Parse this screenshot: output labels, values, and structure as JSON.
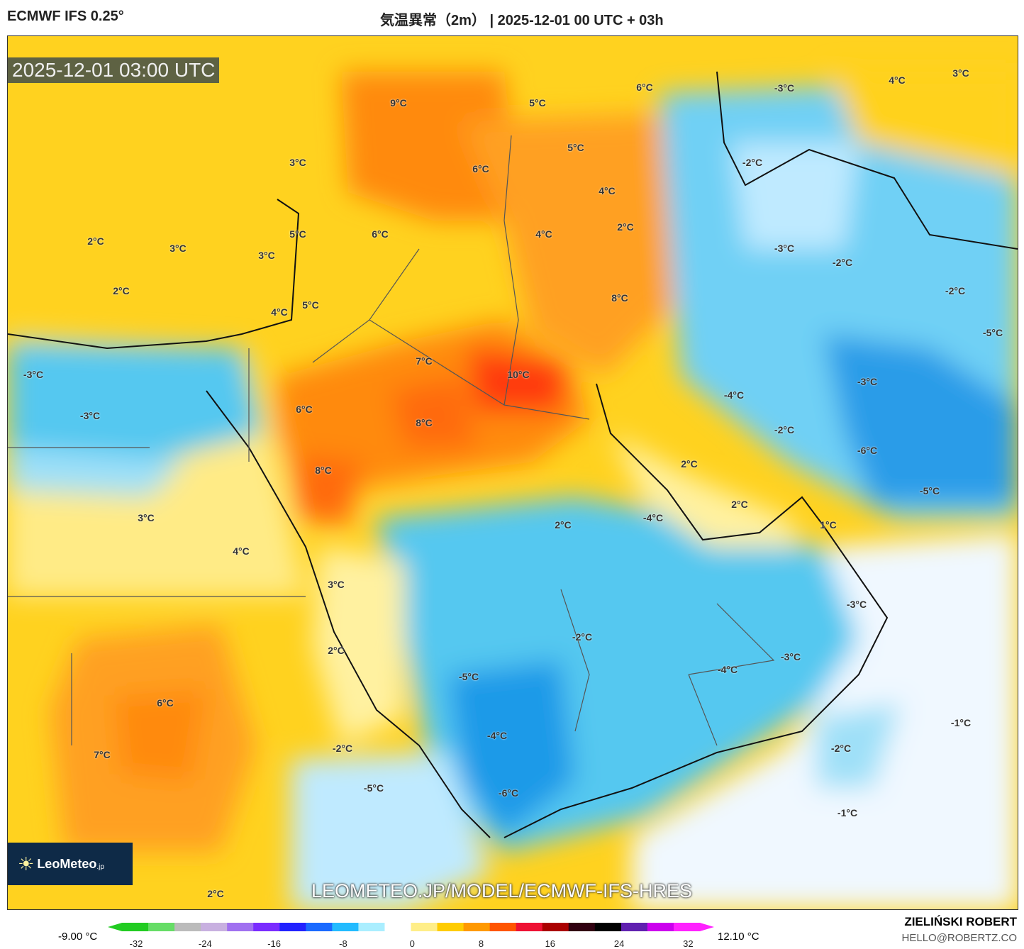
{
  "header": {
    "model": "ECMWF IFS 0.25°",
    "title": "気温異常（2m） | 2025-12-01 00 UTC + 03h"
  },
  "map": {
    "timestamp": "2025-12-01 03:00 UTC",
    "watermark_url": "LEOMETEO.JP/MODEL/ECMWF-IFS-HRES",
    "logo": {
      "text": "LeoMeteo",
      "suffix": ".jp"
    },
    "labels": [
      "9°C",
      "5°C",
      "6°C",
      "3°C",
      "6°C",
      "5°C",
      "4°C",
      "2°C",
      "3°C",
      "3°C",
      "5°C",
      "6°C",
      "4°C",
      "2°C",
      "2°C",
      "5°C",
      "4°C",
      "8°C",
      "7°C",
      "10°C",
      "-3°C",
      "6°C",
      "-3°C",
      "8°C",
      "8°C",
      "2°C",
      "2°C",
      "1°C",
      "-4°C",
      "2°C",
      "3°C",
      "4°C",
      "3°C",
      "2°C",
      "-2°C",
      "-3°C",
      "-4°C",
      "-3°C",
      "-5°C",
      "6°C",
      "7°C",
      "-4°C",
      "-2°C",
      "-5°C",
      "-6°C",
      "-1°C",
      "-2°C",
      "-1°C",
      "2°C",
      "-3°C",
      "4°C",
      "3°C",
      "-2°C",
      "-3°C",
      "-2°C",
      "-2°C",
      "-5°C",
      "-3°C",
      "-4°C",
      "-2°C",
      "-6°C",
      "-5°C"
    ]
  },
  "colorbar": {
    "min_label": "-9.00 °C",
    "max_label": "12.10 °C",
    "ticks": [
      "-32",
      "-24",
      "-16",
      "-8",
      "0",
      "8",
      "16",
      "24",
      "32"
    ],
    "colors": [
      "#22cc22",
      "#66dd66",
      "#bbbbbb",
      "#c8b0e0",
      "#a070f0",
      "#7a2cff",
      "#2222ff",
      "#1a6aff",
      "#22bbff",
      "#aaeeff",
      "#ffffff",
      "#ffee88",
      "#ffcc00",
      "#ff9900",
      "#ff5500",
      "#ee1133",
      "#aa0000",
      "#300010",
      "#000000",
      "#6020b0",
      "#cc00ee",
      "#ff22ff"
    ]
  },
  "credit": {
    "name": "ZIELIŃSKI ROBERT",
    "email": "HELLO@ROBERTZ.CO"
  }
}
